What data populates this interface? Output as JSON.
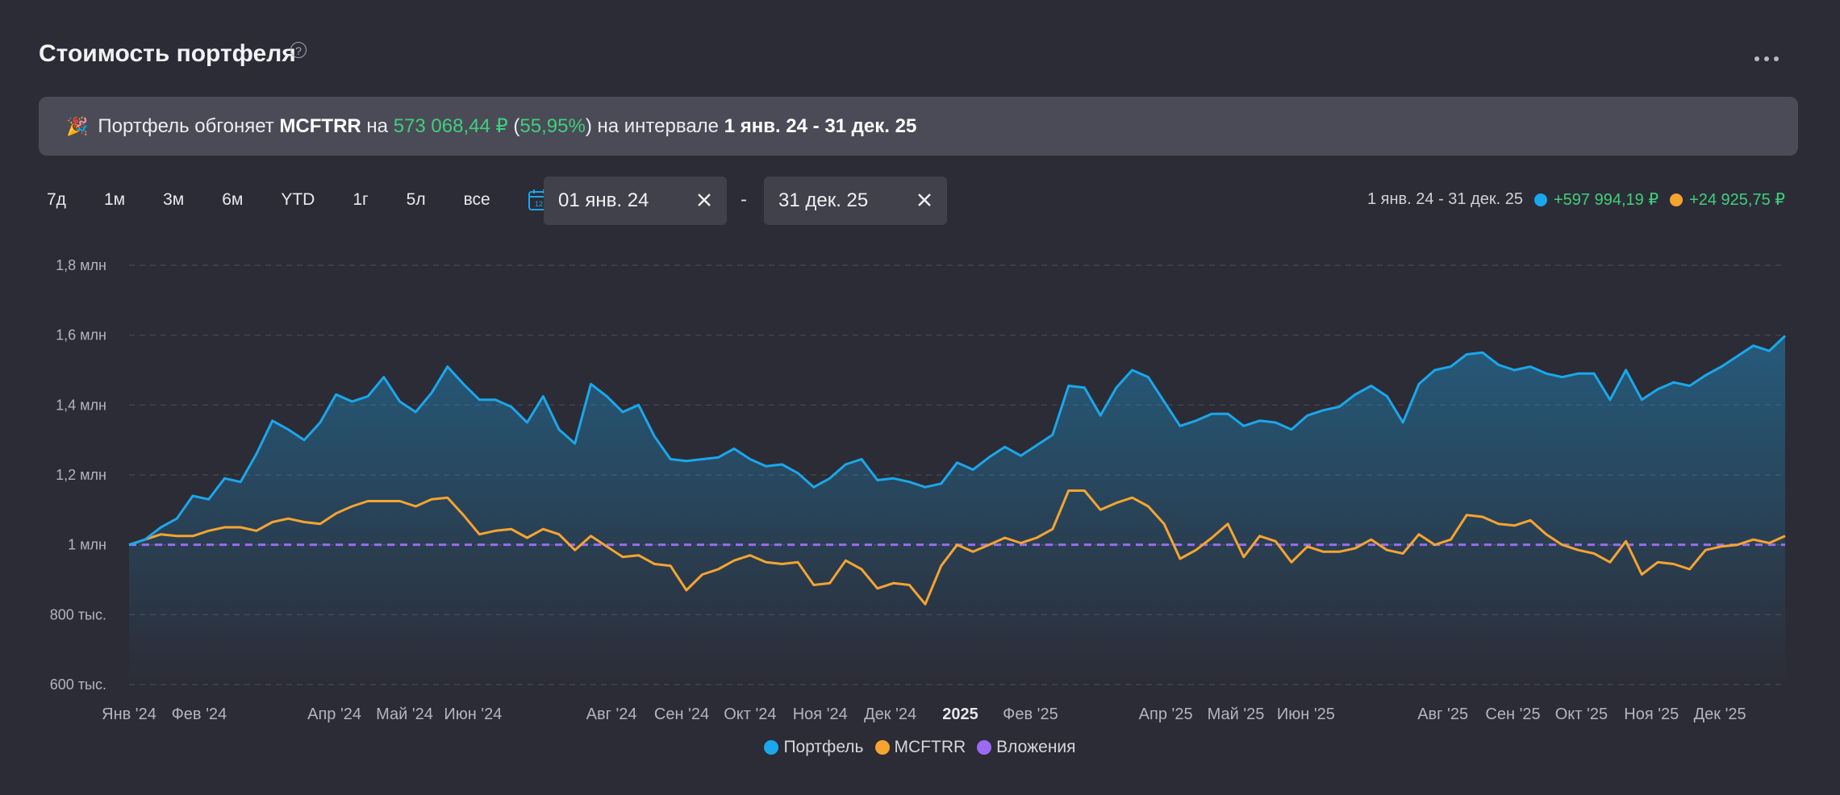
{
  "header": {
    "title": "Стоимость портфеля",
    "help_icon": "?"
  },
  "banner": {
    "icon": "🎉",
    "prefix": "Портфель обгоняет",
    "benchmark": "MCFTRR",
    "on": "на",
    "amount": "573 068,44 ₽",
    "open_paren": "(",
    "percent": "55,95%",
    "close_suffix": ") на интервале",
    "interval": "1 янв. 24 - 31 дек. 25"
  },
  "periods": [
    "7д",
    "1м",
    "3м",
    "6м",
    "YTD",
    "1г",
    "5л",
    "все"
  ],
  "date_from": "01 янв. 24",
  "date_to": "31 дек. 25",
  "date_separator": "-",
  "summary": {
    "range": "1 янв. 24 - 31 дек. 25",
    "portfolio_change": "+597 994,19 ₽",
    "benchmark_change": "+24 925,75 ₽"
  },
  "colors": {
    "portfolio": "#1aa7ec",
    "benchmark": "#f5a430",
    "invested": "#9b6bf2",
    "positive": "#3fd07b",
    "accent": "#1aa7ec"
  },
  "chart_data": {
    "type": "line",
    "ylim": [
      600000,
      1800000
    ],
    "yticks": [
      {
        "value": 1800000,
        "label": "1,8 млн"
      },
      {
        "value": 1600000,
        "label": "1,6 млн"
      },
      {
        "value": 1400000,
        "label": "1,4 млн"
      },
      {
        "value": 1200000,
        "label": "1,2 млн"
      },
      {
        "value": 1000000,
        "label": "1 млн"
      },
      {
        "value": 800000,
        "label": "800 тыс."
      },
      {
        "value": 600000,
        "label": "600 тыс."
      }
    ],
    "xticks": [
      {
        "x": 0,
        "label": "Янв '24"
      },
      {
        "x": 4.3,
        "label": "Фев '24"
      },
      {
        "x": 12.6,
        "label": "Апр '24"
      },
      {
        "x": 16.9,
        "label": "Май '24"
      },
      {
        "x": 21.1,
        "label": "Июн '24"
      },
      {
        "x": 29.6,
        "label": "Авг '24"
      },
      {
        "x": 33.9,
        "label": "Сен '24"
      },
      {
        "x": 38.1,
        "label": "Окт '24"
      },
      {
        "x": 42.4,
        "label": "Ноя '24"
      },
      {
        "x": 46.7,
        "label": "Дек '24"
      },
      {
        "x": 51.0,
        "label": "2025",
        "bold": true
      },
      {
        "x": 55.3,
        "label": "Фев '25"
      },
      {
        "x": 63.6,
        "label": "Апр '25"
      },
      {
        "x": 67.9,
        "label": "Май '25"
      },
      {
        "x": 72.2,
        "label": "Июн '25"
      },
      {
        "x": 80.6,
        "label": "Авг '25"
      },
      {
        "x": 84.9,
        "label": "Сен '25"
      },
      {
        "x": 89.1,
        "label": "Окт '25"
      },
      {
        "x": 93.4,
        "label": "Ноя '25"
      },
      {
        "x": 97.6,
        "label": "Дек '25"
      }
    ],
    "x_start": "2024-01-01",
    "x_end": "2025-12-31",
    "x_max": 101.6,
    "series": [
      {
        "name": "Портфель",
        "values": [
          1000000,
          1015000,
          1050000,
          1075000,
          1140000,
          1130000,
          1190000,
          1180000,
          1260000,
          1355000,
          1330000,
          1300000,
          1350000,
          1430000,
          1410000,
          1425000,
          1480000,
          1410000,
          1380000,
          1435000,
          1510000,
          1460000,
          1415000,
          1415000,
          1395000,
          1350000,
          1425000,
          1330000,
          1290000,
          1460000,
          1425000,
          1380000,
          1400000,
          1310000,
          1245000,
          1240000,
          1245000,
          1250000,
          1275000,
          1245000,
          1225000,
          1230000,
          1205000,
          1165000,
          1190000,
          1230000,
          1245000,
          1185000,
          1190000,
          1180000,
          1165000,
          1175000,
          1235000,
          1215000,
          1250000,
          1280000,
          1255000,
          1285000,
          1315000,
          1455000,
          1450000,
          1370000,
          1450000,
          1500000,
          1480000,
          1410000,
          1340000,
          1355000,
          1375000,
          1375000,
          1340000,
          1355000,
          1350000,
          1330000,
          1370000,
          1385000,
          1395000,
          1430000,
          1455000,
          1425000,
          1350000,
          1460000,
          1500000,
          1510000,
          1545000,
          1550000,
          1515000,
          1500000,
          1510000,
          1490000,
          1480000,
          1490000,
          1490000,
          1415000,
          1500000,
          1415000,
          1445000,
          1465000,
          1455000,
          1485000,
          1510000,
          1540000,
          1570000,
          1555000,
          1598000
        ]
      },
      {
        "name": "MCFTRR",
        "values": [
          1000000,
          1015000,
          1030000,
          1025000,
          1025000,
          1040000,
          1050000,
          1050000,
          1040000,
          1065000,
          1075000,
          1065000,
          1060000,
          1090000,
          1110000,
          1125000,
          1125000,
          1125000,
          1110000,
          1130000,
          1135000,
          1085000,
          1030000,
          1040000,
          1045000,
          1020000,
          1045000,
          1030000,
          985000,
          1025000,
          995000,
          965000,
          970000,
          945000,
          940000,
          870000,
          915000,
          930000,
          955000,
          970000,
          950000,
          945000,
          950000,
          885000,
          890000,
          955000,
          930000,
          875000,
          890000,
          885000,
          830000,
          940000,
          1000000,
          980000,
          1000000,
          1020000,
          1005000,
          1020000,
          1045000,
          1155000,
          1155000,
          1100000,
          1120000,
          1135000,
          1110000,
          1060000,
          960000,
          985000,
          1020000,
          1060000,
          965000,
          1025000,
          1010000,
          950000,
          995000,
          980000,
          980000,
          990000,
          1015000,
          985000,
          975000,
          1030000,
          1000000,
          1015000,
          1085000,
          1080000,
          1060000,
          1055000,
          1070000,
          1030000,
          1000000,
          985000,
          975000,
          950000,
          1010000,
          915000,
          950000,
          945000,
          930000,
          985000,
          995000,
          1000000,
          1015000,
          1005000,
          1025000
        ]
      },
      {
        "name": "Вложения",
        "values": [
          1000000,
          1000000
        ]
      }
    ]
  },
  "legend": [
    "Портфель",
    "MCFTRR",
    "Вложения"
  ]
}
